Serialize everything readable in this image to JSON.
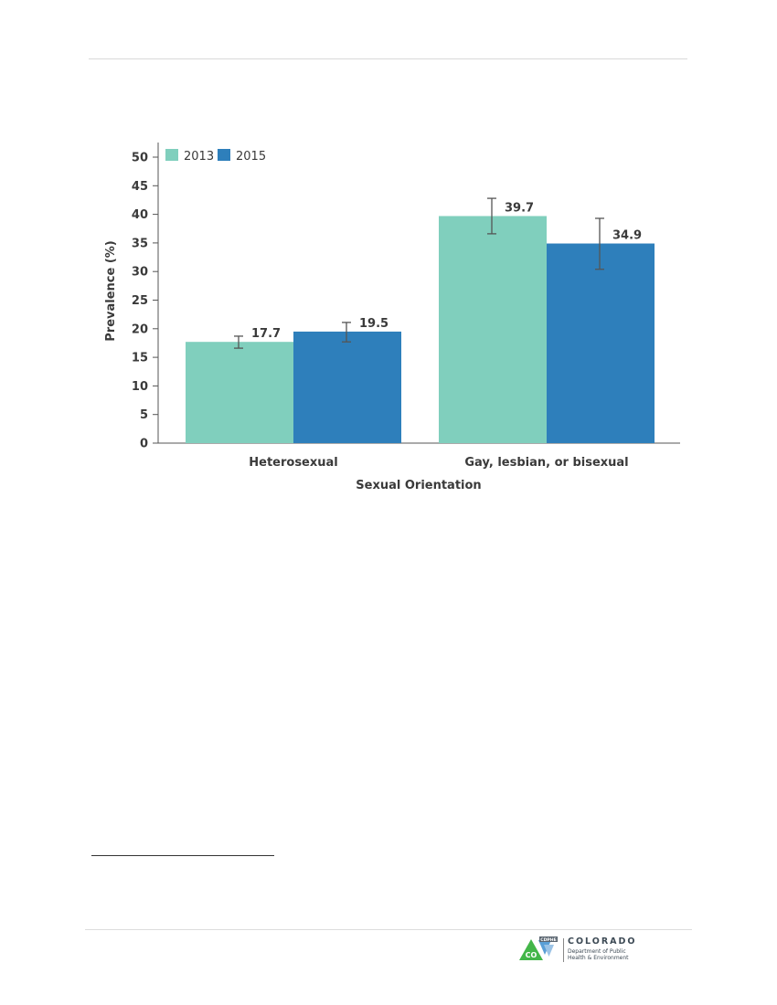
{
  "chart_data": {
    "type": "bar",
    "title": "",
    "xlabel": "Sexual Orientation",
    "ylabel": "Prevalence (%)",
    "ylim": [
      0,
      50
    ],
    "yticks": [
      0,
      5,
      10,
      15,
      20,
      25,
      30,
      35,
      40,
      45,
      50
    ],
    "grid": false,
    "legend_position": "top-left",
    "categories": [
      "Heterosexual",
      "Gay, lesbian, or bisexual"
    ],
    "series": [
      {
        "name": "2013",
        "color": "#80cfbd",
        "values": [
          17.7,
          39.7
        ],
        "labels": [
          "17.7",
          "39.7"
        ],
        "ci_low": [
          16.6,
          36.6
        ],
        "ci_high": [
          18.7,
          42.8
        ]
      },
      {
        "name": "2015",
        "color": "#2e7fbb",
        "values": [
          19.5,
          34.9
        ],
        "labels": [
          "19.5",
          "34.9"
        ],
        "ci_low": [
          17.7,
          30.4
        ],
        "ci_high": [
          21.1,
          39.3
        ]
      }
    ]
  },
  "footer": {
    "logo_badge": "CDPHE",
    "logo_mark": "CO",
    "logo_name": "COLORADO",
    "logo_sub_line1": "Department of Public",
    "logo_sub_line2": "Health & Environment"
  }
}
